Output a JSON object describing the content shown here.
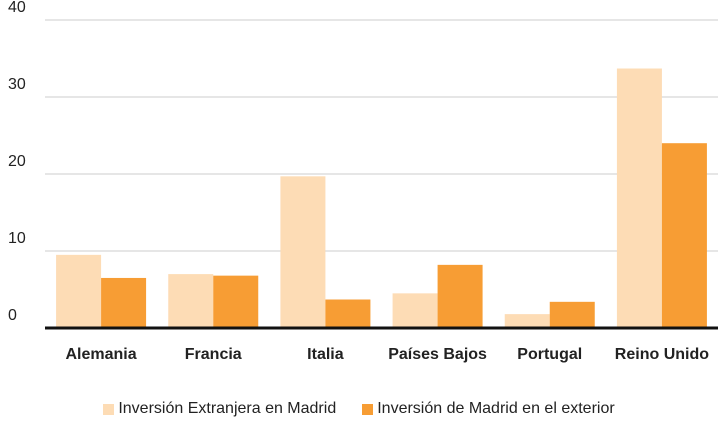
{
  "chart_data": {
    "type": "bar",
    "categories": [
      "Alemania",
      "Francia",
      "Italia",
      "Países Bajos",
      "Portugal",
      "Reino Unido"
    ],
    "series": [
      {
        "name": "Inversión Extranjera en Madrid",
        "color": "#fddcb5",
        "values": [
          9.5,
          7.0,
          19.7,
          4.5,
          1.8,
          33.7
        ]
      },
      {
        "name": "Inversión de Madrid en el exterior",
        "color": "#f79d34",
        "values": [
          6.5,
          6.8,
          3.7,
          8.2,
          3.4,
          24.0
        ]
      }
    ],
    "ylim": [
      0,
      40
    ],
    "yticks": [
      0,
      10,
      20,
      30,
      40
    ],
    "grid": true,
    "legend": "bottom"
  }
}
